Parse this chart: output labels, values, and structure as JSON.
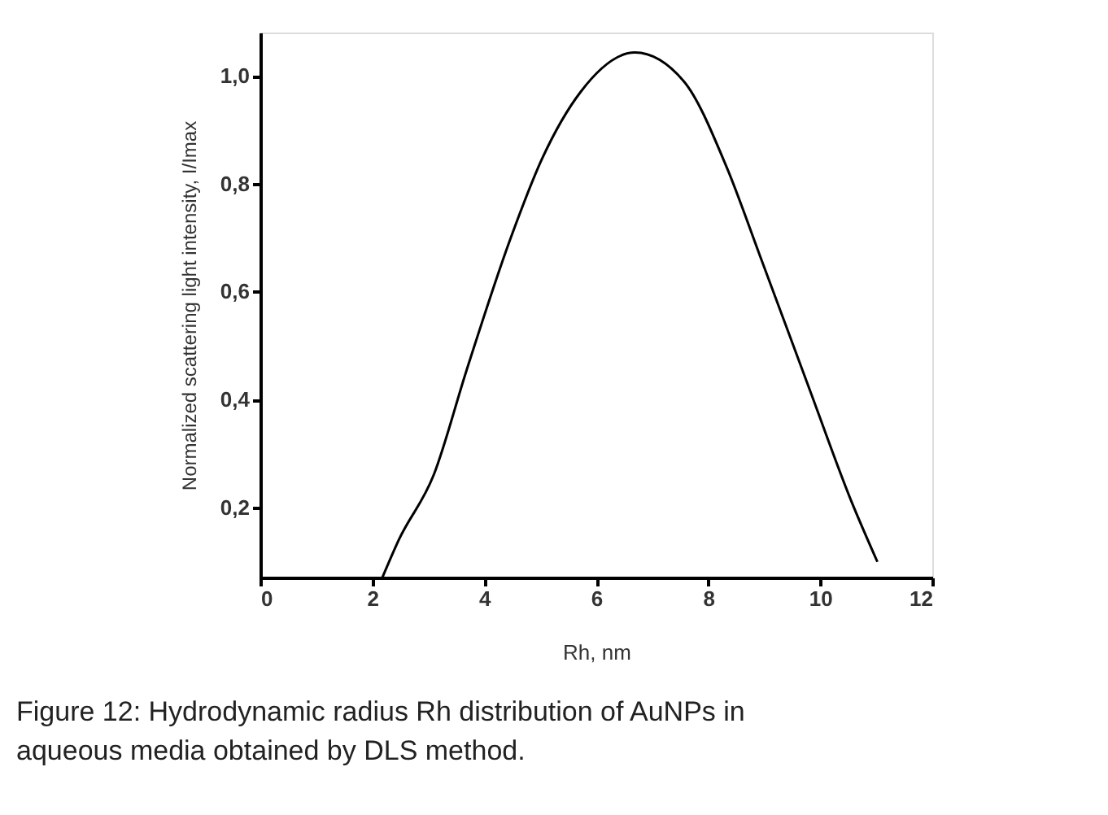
{
  "chart_data": {
    "type": "line",
    "xlabel": "Rh, nm",
    "ylabel": "Normalized  scattering light intensity, I/Imax",
    "annotations": [
      "Figure 12: Hydrodynamic radius Rh distribution of AuNPs in aqueous media obtained by DLS method."
    ],
    "x": [
      2.18,
      2.47,
      3.1,
      3.68,
      4.46,
      5.04,
      5.72,
      6.69,
      7.56,
      8.33,
      8.92,
      9.79,
      10.56,
      11.02
    ],
    "series": [
      {
        "color": "#000000",
        "values": [
          0.07,
          0.139,
          0.261,
          0.453,
          0.696,
          0.848,
          0.97,
          1.043,
          0.99,
          0.83,
          0.667,
          0.424,
          0.21,
          0.099
        ]
      }
    ],
    "xlim": [
      0,
      12
    ],
    "xticks": [
      0,
      2,
      4,
      6,
      8,
      10,
      12
    ],
    "ylim": [
      0.07,
      1.08
    ],
    "yticks": [
      {
        "value": 0.2,
        "label": "0,2"
      },
      {
        "value": 0.4,
        "label": "0,4"
      },
      {
        "value": 0.6,
        "label": "0,6"
      },
      {
        "value": 0.8,
        "label": "0,8"
      },
      {
        "value": 1.0,
        "label": "1,0"
      }
    ],
    "grid": false,
    "line_style": "solid",
    "marker": "none"
  }
}
